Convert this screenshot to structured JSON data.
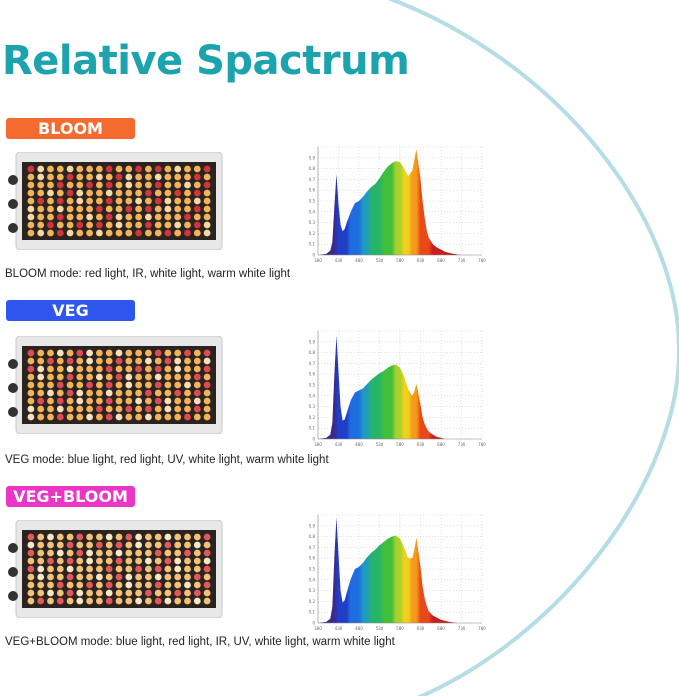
{
  "page": {
    "title": "Relative Spactrum",
    "accent_color": "#1ca3ad",
    "arc_color": "#b5dde5"
  },
  "modes": [
    {
      "label": "BLOOM",
      "badge_color": "#f46a2f",
      "caption": "BLOOM mode: red light, IR, white light, warm white light",
      "led_colors": [
        "#f2b457",
        "#d2343d",
        "#f6d8a4"
      ],
      "chart_data": {
        "type": "area",
        "title": "",
        "xlabel": "",
        "ylabel": "",
        "xlim": [
          380,
          780
        ],
        "ylim": [
          0,
          1.0
        ],
        "x_ticks": [
          380,
          430,
          480,
          530,
          580,
          630,
          680,
          730,
          780
        ],
        "y_ticks": [
          0,
          0.1,
          0.2,
          0.3,
          0.4,
          0.5,
          0.6,
          0.7,
          0.8,
          0.9,
          1
        ],
        "grid": true,
        "x": [
          380,
          400,
          410,
          415,
          420,
          425,
          430,
          435,
          440,
          445,
          450,
          460,
          470,
          480,
          490,
          500,
          510,
          520,
          530,
          540,
          550,
          560,
          570,
          580,
          590,
          600,
          610,
          615,
          620,
          630,
          635,
          640,
          645,
          650,
          660,
          670,
          680,
          690,
          700,
          710,
          720,
          730,
          740,
          760,
          780
        ],
        "values": [
          0,
          0.01,
          0.04,
          0.12,
          0.45,
          0.75,
          0.47,
          0.28,
          0.22,
          0.24,
          0.3,
          0.4,
          0.48,
          0.5,
          0.54,
          0.59,
          0.63,
          0.66,
          0.71,
          0.77,
          0.82,
          0.85,
          0.87,
          0.86,
          0.8,
          0.73,
          0.78,
          0.88,
          0.98,
          0.7,
          0.5,
          0.35,
          0.23,
          0.16,
          0.1,
          0.07,
          0.05,
          0.03,
          0.02,
          0.01,
          0.005,
          0,
          0,
          0,
          0
        ]
      }
    },
    {
      "label": "VEG",
      "badge_color": "#2f56ee",
      "caption": "VEG mode: blue light, red light, UV, white light, warm white light",
      "led_colors": [
        "#f2b457",
        "#e04a55",
        "#f7e0ba"
      ],
      "chart_data": {
        "type": "area",
        "title": "",
        "xlabel": "",
        "ylabel": "",
        "xlim": [
          380,
          780
        ],
        "ylim": [
          0,
          1.0
        ],
        "x_ticks": [
          380,
          430,
          480,
          530,
          580,
          630,
          680,
          730,
          780
        ],
        "y_ticks": [
          0,
          0.1,
          0.2,
          0.3,
          0.4,
          0.5,
          0.6,
          0.7,
          0.8,
          0.9,
          1
        ],
        "grid": true,
        "x": [
          380,
          400,
          410,
          415,
          420,
          425,
          430,
          435,
          440,
          445,
          450,
          460,
          470,
          480,
          490,
          500,
          510,
          520,
          530,
          540,
          550,
          560,
          570,
          580,
          590,
          600,
          610,
          615,
          620,
          630,
          635,
          640,
          645,
          650,
          660,
          670,
          680,
          690,
          700,
          710,
          720,
          730,
          740,
          760,
          780
        ],
        "values": [
          0,
          0.01,
          0.04,
          0.15,
          0.6,
          0.96,
          0.62,
          0.3,
          0.17,
          0.18,
          0.24,
          0.36,
          0.43,
          0.45,
          0.47,
          0.51,
          0.55,
          0.58,
          0.61,
          0.63,
          0.66,
          0.68,
          0.69,
          0.66,
          0.58,
          0.46,
          0.4,
          0.44,
          0.51,
          0.32,
          0.2,
          0.14,
          0.1,
          0.07,
          0.04,
          0.02,
          0.01,
          0,
          0,
          0,
          0,
          0,
          0,
          0,
          0
        ]
      }
    },
    {
      "label": "VEG+BLOOM",
      "badge_color": "#ea35c7",
      "caption": "VEG+BLOOM mode: blue light, red light, IR, UV, white light, warm white light",
      "led_colors": [
        "#f4c277",
        "#e4575a",
        "#f9e6c6"
      ],
      "chart_data": {
        "type": "area",
        "title": "",
        "xlabel": "",
        "ylabel": "",
        "xlim": [
          380,
          780
        ],
        "ylim": [
          0,
          1.0
        ],
        "x_ticks": [
          380,
          430,
          480,
          530,
          580,
          630,
          680,
          730,
          780
        ],
        "y_ticks": [
          0,
          0.1,
          0.2,
          0.3,
          0.4,
          0.5,
          0.6,
          0.7,
          0.8,
          0.9,
          1
        ],
        "grid": true,
        "x": [
          380,
          400,
          410,
          415,
          420,
          425,
          430,
          435,
          440,
          445,
          450,
          460,
          470,
          480,
          490,
          500,
          510,
          520,
          530,
          540,
          550,
          560,
          570,
          580,
          590,
          600,
          610,
          615,
          620,
          630,
          635,
          640,
          645,
          650,
          660,
          670,
          680,
          690,
          700,
          710,
          720,
          730,
          740,
          760,
          780
        ],
        "values": [
          0,
          0.01,
          0.04,
          0.15,
          0.62,
          0.98,
          0.63,
          0.3,
          0.19,
          0.21,
          0.28,
          0.41,
          0.5,
          0.52,
          0.56,
          0.61,
          0.65,
          0.68,
          0.72,
          0.75,
          0.78,
          0.8,
          0.81,
          0.78,
          0.7,
          0.6,
          0.6,
          0.68,
          0.79,
          0.52,
          0.34,
          0.23,
          0.16,
          0.11,
          0.07,
          0.05,
          0.03,
          0.02,
          0.01,
          0.005,
          0,
          0,
          0,
          0,
          0
        ]
      }
    }
  ]
}
